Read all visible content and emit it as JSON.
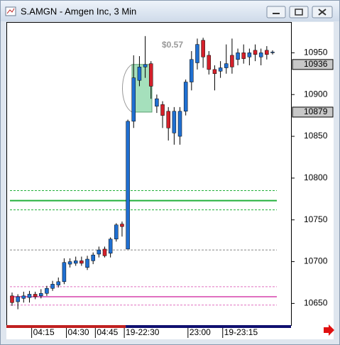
{
  "window": {
    "title": "S.AMGN - Amgen Inc, 3 Min"
  },
  "chart_data": {
    "type": "candlestick",
    "categories": [
      null,
      null,
      null,
      null,
      "04:15",
      null,
      null,
      null,
      null,
      null,
      "04:30",
      null,
      null,
      null,
      null,
      "04:45",
      null,
      null,
      null,
      null,
      "19-22:30",
      null,
      null,
      null,
      null,
      null,
      null,
      null,
      null,
      null,
      null,
      "23:00",
      null,
      null,
      null,
      null,
      null,
      "19-23:15",
      null,
      null,
      null,
      null,
      null,
      null,
      null,
      null
    ],
    "open": [
      10659,
      10652,
      10656,
      10657,
      10661,
      10659,
      10662,
      10668,
      10672,
      10676,
      10697,
      10698,
      10701,
      10693,
      10701,
      10709,
      10715,
      10710,
      10727,
      10745,
      10715,
      10868,
      10917,
      10933,
      10937,
      10886,
      10888,
      10880,
      10854,
      10850,
      10880,
      10915,
      10938,
      10965,
      10947,
      10930,
      10928,
      10932,
      10947,
      10942,
      10950,
      10945,
      10953,
      10945,
      10953,
      10950
    ],
    "high": [
      10663,
      10661,
      10664,
      10665,
      10664,
      10667,
      10671,
      10677,
      10681,
      10704,
      10704,
      10706,
      10706,
      10707,
      10711,
      10718,
      10718,
      10729,
      10746,
      10748,
      10870,
      10947,
      10946,
      10970,
      10940,
      10900,
      10892,
      10885,
      10885,
      10885,
      10918,
      10952,
      10967,
      10968,
      10952,
      10935,
      10940,
      10960,
      10967,
      10955,
      10960,
      10955,
      10960,
      10955,
      10958,
      10953
    ],
    "low": [
      10647,
      10643,
      10651,
      10651,
      10655,
      10656,
      10659,
      10665,
      10669,
      10673,
      10693,
      10695,
      10695,
      10690,
      10697,
      10705,
      10705,
      10705,
      10724,
      10730,
      10715,
      10860,
      10910,
      10920,
      10895,
      10878,
      10860,
      10845,
      10840,
      10840,
      10875,
      10905,
      10930,
      10932,
      10924,
      10905,
      10920,
      10925,
      10925,
      10935,
      10937,
      10935,
      10940,
      10935,
      10942,
      10948
    ],
    "close": [
      10651,
      10658,
      10659,
      10661,
      10658,
      10662,
      10668,
      10673,
      10676,
      10699,
      10700,
      10701,
      10698,
      10703,
      10708,
      10714,
      10707,
      10727,
      10744,
      10742,
      10868,
      10920,
      10933,
      10936,
      10910,
      10895,
      10875,
      10860,
      10880,
      10880,
      10915,
      10942,
      10960,
      10945,
      10930,
      10925,
      10932,
      10937,
      10933,
      10950,
      10943,
      10950,
      10948,
      10950,
      10948,
      10951
    ],
    "up_color": "#1f6fd1",
    "down_color": "#d4202a",
    "ylim": [
      10624,
      10986
    ],
    "yticks": [
      10650,
      10700,
      10750,
      10800,
      10850,
      10900,
      10950
    ],
    "price_markers": [
      10936,
      10879
    ],
    "annotation": "$0.57",
    "levels": [
      {
        "value": 10773,
        "color": "#22b03a",
        "style": "solid"
      },
      {
        "value": 10785,
        "color": "#22b03a",
        "style": "dashed"
      },
      {
        "value": 10762,
        "color": "#22b03a",
        "style": "dashed"
      },
      {
        "value": 10714,
        "color": "#888888",
        "style": "dashed"
      },
      {
        "value": 10658,
        "color": "#e070c0",
        "style": "solid"
      },
      {
        "value": 10670,
        "color": "#e070c0",
        "style": "dashed"
      },
      {
        "value": 10648,
        "color": "#e070c0",
        "style": "dashed"
      }
    ]
  }
}
